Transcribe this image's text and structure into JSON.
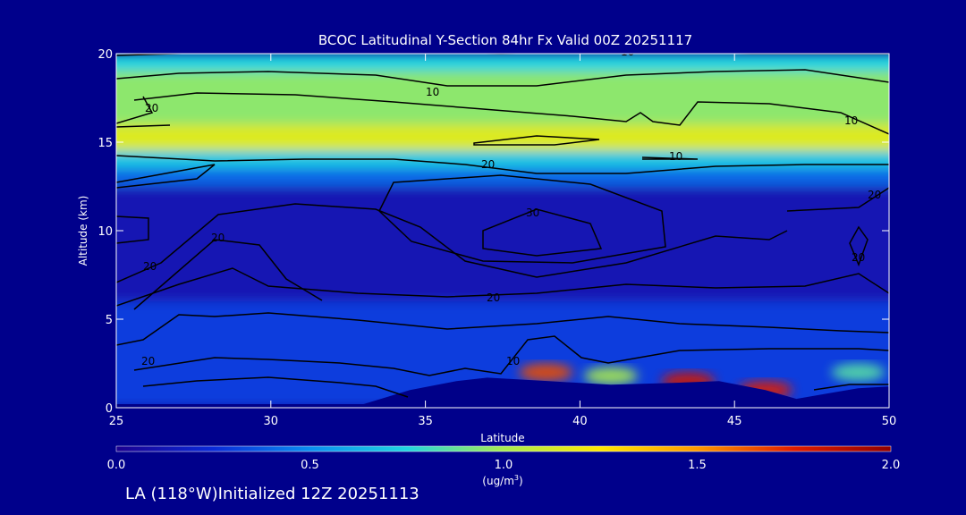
{
  "chart_data": {
    "type": "heatmap",
    "title": "BCOC Latitudinal Y-Section 84hr  Fx Valid 00Z 20251117",
    "xlabel": "Latitude",
    "ylabel": "Altitude (km)",
    "xlim": [
      25,
      50
    ],
    "ylim": [
      0,
      20
    ],
    "x_ticks": [
      "25",
      "30",
      "35",
      "40",
      "45",
      "50"
    ],
    "y_ticks": [
      "0",
      "5",
      "10",
      "15",
      "20"
    ],
    "colorbar": {
      "min": 0.0,
      "max": 2.0,
      "ticks": [
        "0.0",
        "0.5",
        "1.0",
        "1.5",
        "2.0"
      ],
      "units": "(ug/m",
      "units_sup": "3",
      "units_close": ")",
      "colors": [
        "#1b0090",
        "#0a2ad8",
        "#0a8ef0",
        "#20d4e0",
        "#a8ec50",
        "#ffe800",
        "#ff9a00",
        "#e01c00",
        "#900000"
      ]
    },
    "contour_labels": [
      "10",
      "10",
      "10",
      "10",
      "20",
      "20",
      "20",
      "20",
      "20",
      "30",
      "20",
      "20",
      "10",
      "20"
    ],
    "bands": [
      {
        "z_from": 19.0,
        "z_to": 20.0,
        "value": 0.75
      },
      {
        "z_from": 16.0,
        "z_to": 19.0,
        "value": 0.95
      },
      {
        "z_from": 14.5,
        "z_to": 16.0,
        "value": 1.15
      },
      {
        "z_from": 13.5,
        "z_to": 14.5,
        "value": 0.7
      },
      {
        "z_from": 12.5,
        "z_to": 13.5,
        "value": 0.4
      },
      {
        "z_from": 6.0,
        "z_to": 12.5,
        "value": 0.12
      },
      {
        "z_from": 0.0,
        "z_to": 6.0,
        "value": 0.3
      }
    ],
    "hotspots": [
      {
        "lat": 38.9,
        "alt": 2.0,
        "value": 1.65
      },
      {
        "lat": 43.5,
        "alt": 1.5,
        "value": 1.8
      },
      {
        "lat": 46.0,
        "alt": 1.0,
        "value": 1.75
      },
      {
        "lat": 41.0,
        "alt": 1.8,
        "value": 1.0
      },
      {
        "lat": 49.0,
        "alt": 2.0,
        "value": 0.85
      }
    ],
    "terrain": [
      [
        25,
        0.2
      ],
      [
        33,
        0.2
      ],
      [
        34.5,
        1.0
      ],
      [
        36,
        1.5
      ],
      [
        37,
        1.7
      ],
      [
        39,
        1.5
      ],
      [
        41,
        1.3
      ],
      [
        43,
        1.4
      ],
      [
        44.5,
        1.5
      ],
      [
        46,
        1.0
      ],
      [
        47,
        0.5
      ],
      [
        48,
        0.8
      ],
      [
        49,
        1.1
      ],
      [
        50,
        1.2
      ]
    ]
  },
  "footer": {
    "location": "LA (118",
    "deg": "°",
    "rest": "W)Initialized 12Z 20251113"
  }
}
